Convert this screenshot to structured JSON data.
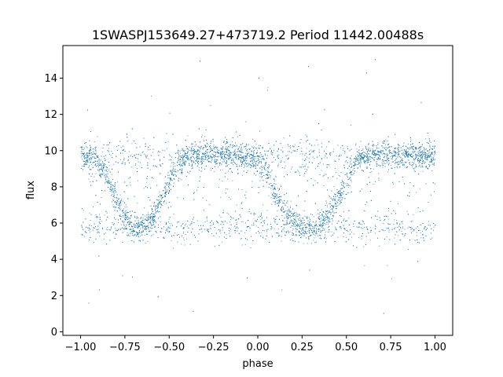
{
  "chart_data": {
    "type": "scatter",
    "title": "1SWASPJ153649.27+473719.2 Period 11442.00488s",
    "xlabel": "phase",
    "ylabel": "flux",
    "xlim": [
      -1.1,
      1.1
    ],
    "ylim": [
      -0.2,
      15.8
    ],
    "xticks": [
      -1.0,
      -0.75,
      -0.5,
      -0.25,
      0.0,
      0.25,
      0.5,
      0.75,
      1.0
    ],
    "xtick_labels": [
      "−1.00",
      "−0.75",
      "−0.50",
      "−0.25",
      "0.00",
      "0.25",
      "0.50",
      "0.75",
      "1.00"
    ],
    "yticks": [
      0,
      2,
      4,
      6,
      8,
      10,
      12,
      14
    ],
    "ytick_labels": [
      "0",
      "2",
      "4",
      "6",
      "8",
      "10",
      "12",
      "14"
    ],
    "grid": false,
    "marker_color": "#1f77b4",
    "phase_range": [
      -1.0,
      1.0
    ],
    "flux_upper_level": 9.8,
    "flux_lower_level": 5.7,
    "light_curve_phase_flux": [
      [
        -1.0,
        9.8
      ],
      [
        -0.92,
        9.6
      ],
      [
        -0.85,
        8.5
      ],
      [
        -0.78,
        7.0
      ],
      [
        -0.72,
        6.0
      ],
      [
        -0.66,
        5.8
      ],
      [
        -0.6,
        6.2
      ],
      [
        -0.54,
        7.4
      ],
      [
        -0.48,
        8.8
      ],
      [
        -0.42,
        9.6
      ],
      [
        -0.35,
        9.8
      ],
      [
        -0.25,
        9.8
      ],
      [
        -0.15,
        9.8
      ],
      [
        -0.05,
        9.6
      ],
      [
        0.0,
        9.4
      ],
      [
        0.05,
        8.8
      ],
      [
        0.1,
        7.6
      ],
      [
        0.15,
        6.6
      ],
      [
        0.22,
        5.9
      ],
      [
        0.3,
        5.7
      ],
      [
        0.38,
        6.2
      ],
      [
        0.45,
        7.4
      ],
      [
        0.52,
        8.8
      ],
      [
        0.58,
        9.6
      ],
      [
        0.65,
        9.8
      ],
      [
        0.75,
        9.8
      ],
      [
        0.85,
        9.8
      ],
      [
        0.95,
        9.6
      ],
      [
        1.0,
        9.8
      ]
    ]
  }
}
